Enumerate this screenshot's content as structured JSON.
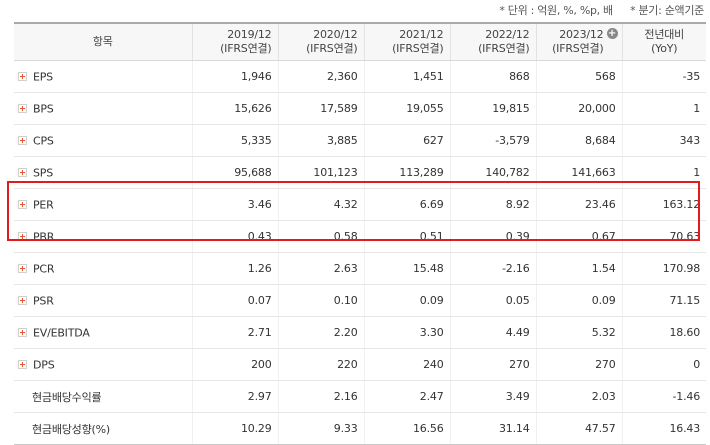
{
  "notes": {
    "unit": "* 단위 : 억원, %, %p, 배",
    "quarter": "* 분기: 순액기준"
  },
  "header": {
    "item": "항목",
    "columns": [
      {
        "year": "2019/12",
        "basis": "(IFRS연결)"
      },
      {
        "year": "2020/12",
        "basis": "(IFRS연결)"
      },
      {
        "year": "2021/12",
        "basis": "(IFRS연결)"
      },
      {
        "year": "2022/12",
        "basis": "(IFRS연결)"
      },
      {
        "year": "2023/12",
        "basis": "(IFRS연결)"
      }
    ],
    "yoy_line1": "전년대비",
    "yoy_line2": "(YoY)",
    "add_column_icon": "plus-circle-icon"
  },
  "rows": [
    {
      "label": "EPS",
      "expandable": true,
      "values": [
        "1,946",
        "2,360",
        "1,451",
        "868",
        "568"
      ],
      "yoy": "-35"
    },
    {
      "label": "BPS",
      "expandable": true,
      "values": [
        "15,626",
        "17,589",
        "19,055",
        "19,815",
        "20,000"
      ],
      "yoy": "1"
    },
    {
      "label": "CPS",
      "expandable": true,
      "values": [
        "5,335",
        "3,885",
        "627",
        "-3,579",
        "8,684"
      ],
      "yoy": "343"
    },
    {
      "label": "SPS",
      "expandable": true,
      "values": [
        "95,688",
        "101,123",
        "113,289",
        "140,782",
        "141,663"
      ],
      "yoy": "1"
    },
    {
      "label": "PER",
      "expandable": true,
      "values": [
        "3.46",
        "4.32",
        "6.69",
        "8.92",
        "23.46"
      ],
      "yoy": "163.12"
    },
    {
      "label": "PBR",
      "expandable": true,
      "values": [
        "0.43",
        "0.58",
        "0.51",
        "0.39",
        "0.67"
      ],
      "yoy": "70.63"
    },
    {
      "label": "PCR",
      "expandable": true,
      "values": [
        "1.26",
        "2.63",
        "15.48",
        "-2.16",
        "1.54"
      ],
      "yoy": "170.98"
    },
    {
      "label": "PSR",
      "expandable": true,
      "values": [
        "0.07",
        "0.10",
        "0.09",
        "0.05",
        "0.09"
      ],
      "yoy": "71.15"
    },
    {
      "label": "EV/EBITDA",
      "expandable": true,
      "values": [
        "2.71",
        "2.20",
        "3.30",
        "4.49",
        "5.32"
      ],
      "yoy": "18.60"
    },
    {
      "label": "DPS",
      "expandable": true,
      "values": [
        "200",
        "220",
        "240",
        "270",
        "270"
      ],
      "yoy": "0"
    },
    {
      "label": "현금배당수익률",
      "expandable": false,
      "values": [
        "2.97",
        "2.16",
        "2.47",
        "3.49",
        "2.03"
      ],
      "yoy": "-1.46"
    },
    {
      "label": "현금배당성향(%)",
      "expandable": false,
      "values": [
        "10.29",
        "9.33",
        "16.56",
        "31.14",
        "47.57"
      ],
      "yoy": "16.43"
    }
  ],
  "highlight": {
    "rows": [
      "PER",
      "PBR"
    ],
    "color": "#e31b1b"
  },
  "colors": {
    "negative": "#e0100f",
    "expand_icon": "#e2582a"
  }
}
